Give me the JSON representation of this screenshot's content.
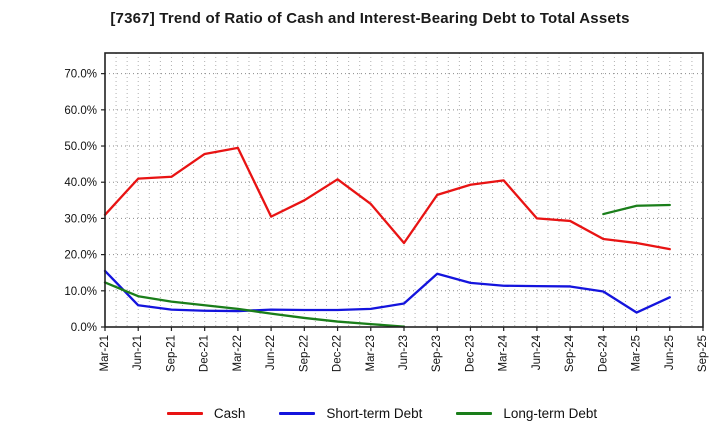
{
  "title": "[7367]  Trend of Ratio of Cash and Interest-Bearing Debt to Total Assets",
  "chart_data": {
    "type": "line",
    "categories": [
      "Mar-21",
      "Jun-21",
      "Sep-21",
      "Dec-21",
      "Mar-22",
      "Jun-22",
      "Sep-22",
      "Dec-22",
      "Mar-23",
      "Jun-23",
      "Sep-23",
      "Dec-23",
      "Mar-24",
      "Jun-24",
      "Sep-24",
      "Dec-24",
      "Mar-25",
      "Jun-25",
      "Sep-25"
    ],
    "series": [
      {
        "name": "Cash",
        "color": "#e81313",
        "values": [
          31.0,
          41.0,
          41.5,
          47.8,
          49.5,
          30.5,
          35.0,
          40.8,
          34.0,
          23.2,
          36.5,
          39.3,
          40.5,
          30.0,
          29.3,
          24.3,
          23.2,
          21.5,
          null
        ]
      },
      {
        "name": "Short-term Debt",
        "color": "#1414dd",
        "values": [
          15.5,
          6.0,
          4.8,
          4.5,
          4.4,
          4.8,
          4.7,
          4.7,
          5.0,
          6.5,
          14.7,
          12.2,
          11.4,
          11.3,
          11.2,
          9.8,
          4.0,
          8.2,
          null
        ]
      },
      {
        "name": "Long-term Debt",
        "color": "#1a7e1a",
        "values": [
          12.3,
          8.5,
          7.0,
          6.0,
          5.0,
          3.7,
          2.5,
          1.5,
          0.8,
          0.1,
          null,
          null,
          null,
          null,
          null,
          31.2,
          33.5,
          33.7,
          null
        ]
      }
    ],
    "yticks": [
      "0.0%",
      "10.0%",
      "20.0%",
      "30.0%",
      "40.0%",
      "50.0%",
      "60.0%",
      "70.0%"
    ],
    "ylim": [
      0,
      75.7
    ],
    "xlabel": "",
    "ylabel": "",
    "grid": "monthly vertical dotted + 10% horizontal dotted",
    "legend_position": "bottom"
  }
}
